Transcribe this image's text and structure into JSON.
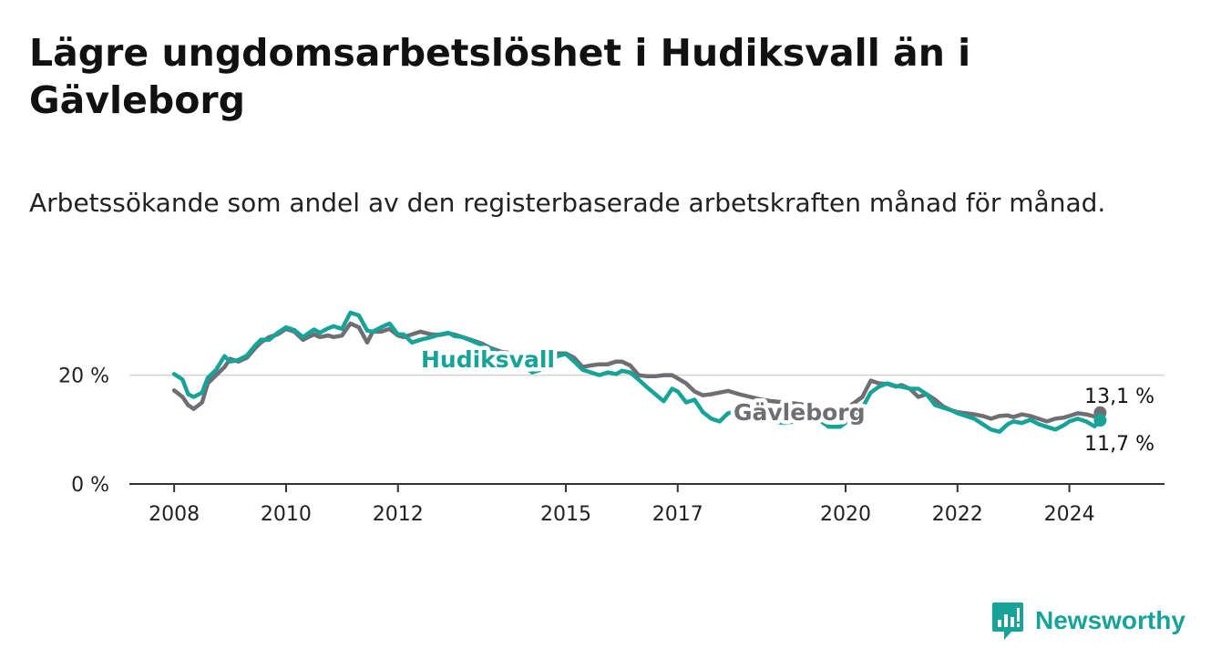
{
  "title": "Lägre ungdomsarbetslöshet i Hudiksvall än i Gävleborg",
  "subtitle": "Arbetssökande som andel av den registerbaserade arbetskraften månad för månad.",
  "brand": {
    "name": "Newsworthy",
    "color": "#17a398",
    "icon": "newsworthy-bar-chart-logo-icon"
  },
  "colors": {
    "hudiksvall": "#17a398",
    "gavleborg": "#6f6e73",
    "grid": "#d3d3d3",
    "axis": "#333333"
  },
  "chart_data": {
    "type": "line",
    "title": "Lägre ungdomsarbetslöshet i Hudiksvall än i Gävleborg",
    "subtitle": "Arbetssökande som andel av den registerbaserade arbetskraften månad för månad.",
    "xlabel": "",
    "ylabel": "",
    "xlim": [
      2007.2,
      2025.7
    ],
    "ylim": [
      0,
      32
    ],
    "y_ticks": [
      0,
      20
    ],
    "y_tick_labels": [
      "0 %",
      "20 %"
    ],
    "x_ticks": [
      2008,
      2010,
      2012,
      2015,
      2017,
      2020,
      2022,
      2024
    ],
    "x_tick_labels": [
      "2008",
      "2010",
      "2012",
      "2015",
      "2017",
      "2020",
      "2022",
      "2024"
    ],
    "grid": "horizontal",
    "legend": "inline labels",
    "end_labels": {
      "gavleborg": "13,1 %",
      "hudiksvall": "11,7 %"
    },
    "series": [
      {
        "name": "Hudiksvall",
        "color": "#17a398",
        "x": [
          2008.0,
          2008.15,
          2008.25,
          2008.35,
          2008.5,
          2008.6,
          2008.75,
          2008.9,
          2009.0,
          2009.15,
          2009.3,
          2009.45,
          2009.55,
          2009.7,
          2009.85,
          2010.0,
          2010.15,
          2010.3,
          2010.5,
          2010.6,
          2010.75,
          2010.85,
          2011.0,
          2011.15,
          2011.3,
          2011.45,
          2011.55,
          2011.7,
          2011.85,
          2012.0,
          2012.1,
          2012.25,
          2012.4,
          2012.6,
          2012.75,
          2012.9,
          2013.0,
          2013.15,
          2013.3,
          2013.5,
          2013.65,
          2013.85,
          2014.0,
          2014.2,
          2014.4,
          2014.55,
          2014.7,
          2014.85,
          2015.0,
          2015.15,
          2015.3,
          2015.45,
          2015.6,
          2015.75,
          2015.9,
          2016.0,
          2016.15,
          2016.3,
          2016.45,
          2016.6,
          2016.75,
          2016.9,
          2017.0,
          2017.15,
          2017.3,
          2017.45,
          2017.6,
          2017.75,
          2017.9,
          2018.1,
          2018.3,
          2018.5,
          2018.7,
          2018.9,
          2019.1,
          2019.3,
          2019.5,
          2019.7,
          2019.9,
          2020.1,
          2020.3,
          2020.45,
          2020.6,
          2020.75,
          2020.9,
          2021.0,
          2021.15,
          2021.3,
          2021.45,
          2021.6,
          2021.75,
          2021.9,
          2022.0,
          2022.15,
          2022.3,
          2022.45,
          2022.6,
          2022.75,
          2022.9,
          2023.0,
          2023.15,
          2023.3,
          2023.45,
          2023.6,
          2023.75,
          2023.9,
          2024.0,
          2024.15,
          2024.3,
          2024.45,
          2024.55
        ],
        "y": [
          20.2,
          19.2,
          16.5,
          16.0,
          16.8,
          19.5,
          21.0,
          23.5,
          22.5,
          22.8,
          23.6,
          25.5,
          26.5,
          26.5,
          27.8,
          28.8,
          28.3,
          27.0,
          28.4,
          27.8,
          28.6,
          29.0,
          28.5,
          31.5,
          31.0,
          28.2,
          28.0,
          28.8,
          29.5,
          27.5,
          27.5,
          26.0,
          26.5,
          27.0,
          27.5,
          27.8,
          27.2,
          27.0,
          26.4,
          25.5,
          24.8,
          24.0,
          23.4,
          22.0,
          20.5,
          21.0,
          22.2,
          23.5,
          23.9,
          22.5,
          21.0,
          20.5,
          20.0,
          20.5,
          20.2,
          20.8,
          20.5,
          19.2,
          17.8,
          16.5,
          15.2,
          17.5,
          17.0,
          15.0,
          15.5,
          13.2,
          12.0,
          11.5,
          13.0,
          13.5,
          12.8,
          12.0,
          11.5,
          11.2,
          11.5,
          11.8,
          12.0,
          10.5,
          10.5,
          12.0,
          14.0,
          16.8,
          17.9,
          18.5,
          18.0,
          17.9,
          17.5,
          17.5,
          16.5,
          14.5,
          14.0,
          13.5,
          13.0,
          12.5,
          12.0,
          11.0,
          10.0,
          9.6,
          11.0,
          11.5,
          11.2,
          11.8,
          11.0,
          10.5,
          10.0,
          10.8,
          11.5,
          12.0,
          11.5,
          10.6,
          11.7
        ]
      },
      {
        "name": "Gävleborg",
        "color": "#6f6e73",
        "x": [
          2008.0,
          2008.15,
          2008.25,
          2008.35,
          2008.5,
          2008.6,
          2008.75,
          2008.9,
          2009.0,
          2009.15,
          2009.3,
          2009.45,
          2009.55,
          2009.7,
          2009.85,
          2010.0,
          2010.15,
          2010.3,
          2010.5,
          2010.6,
          2010.75,
          2010.85,
          2011.0,
          2011.15,
          2011.3,
          2011.45,
          2011.55,
          2011.7,
          2011.85,
          2012.0,
          2012.1,
          2012.25,
          2012.4,
          2012.6,
          2012.75,
          2012.9,
          2013.0,
          2013.15,
          2013.3,
          2013.5,
          2013.65,
          2013.85,
          2014.0,
          2014.2,
          2014.4,
          2014.55,
          2014.7,
          2014.85,
          2015.0,
          2015.15,
          2015.3,
          2015.45,
          2015.6,
          2015.75,
          2015.9,
          2016.0,
          2016.15,
          2016.3,
          2016.45,
          2016.6,
          2016.75,
          2016.9,
          2017.0,
          2017.15,
          2017.3,
          2017.45,
          2017.6,
          2017.75,
          2017.9,
          2018.1,
          2018.3,
          2018.5,
          2018.7,
          2018.9,
          2019.1,
          2019.3,
          2019.5,
          2019.7,
          2019.9,
          2020.1,
          2020.3,
          2020.45,
          2020.6,
          2020.75,
          2020.9,
          2021.0,
          2021.15,
          2021.3,
          2021.45,
          2021.6,
          2021.75,
          2021.9,
          2022.0,
          2022.15,
          2022.3,
          2022.45,
          2022.6,
          2022.75,
          2022.9,
          2023.0,
          2023.15,
          2023.3,
          2023.45,
          2023.6,
          2023.75,
          2023.9,
          2024.0,
          2024.15,
          2024.3,
          2024.45,
          2024.55
        ],
        "y": [
          17.2,
          16.0,
          14.5,
          13.8,
          15.0,
          18.5,
          20.0,
          21.5,
          23.0,
          22.5,
          23.2,
          25.0,
          26.0,
          27.0,
          27.5,
          28.5,
          28.0,
          26.5,
          27.5,
          27.0,
          27.3,
          27.0,
          27.3,
          29.5,
          28.8,
          26.0,
          28.0,
          28.0,
          28.5,
          27.3,
          27.0,
          27.5,
          28.0,
          27.5,
          27.4,
          27.7,
          27.5,
          27.0,
          26.5,
          25.8,
          25.0,
          24.3,
          24.1,
          23.5,
          22.8,
          23.0,
          23.8,
          24.0,
          24.0,
          23.2,
          21.5,
          21.8,
          22.0,
          22.0,
          22.5,
          22.5,
          21.8,
          20.0,
          19.8,
          19.8,
          20.0,
          20.0,
          19.4,
          18.5,
          17.0,
          16.3,
          16.5,
          16.8,
          17.1,
          16.5,
          16.0,
          15.5,
          15.2,
          15.0,
          14.8,
          14.5,
          14.0,
          13.8,
          13.6,
          14.5,
          16.0,
          19.0,
          18.5,
          18.4,
          17.9,
          18.2,
          17.5,
          16.0,
          16.5,
          15.5,
          14.2,
          13.5,
          13.2,
          13.0,
          12.8,
          12.5,
          12.0,
          12.5,
          12.6,
          12.3,
          12.8,
          12.5,
          12.0,
          11.5,
          12.0,
          12.2,
          12.5,
          13.0,
          12.8,
          12.4,
          13.1
        ]
      }
    ]
  }
}
